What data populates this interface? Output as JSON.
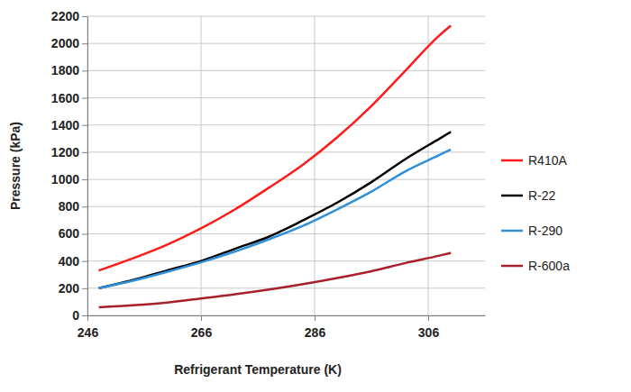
{
  "chart_data": {
    "type": "line",
    "x_label": "Refrigerant Temperature (K)",
    "y_label": "Pressure (kPa)",
    "x": [
      248,
      254,
      260,
      266,
      272,
      278,
      284,
      290,
      296,
      302,
      308,
      310
    ],
    "series": [
      {
        "name": "R410A",
        "color": "#ff1a1a",
        "values": [
          330,
          420,
          520,
          640,
          780,
          940,
          1110,
          1310,
          1540,
          1800,
          2060,
          2130
        ]
      },
      {
        "name": "R-22",
        "color": "#000000",
        "values": [
          200,
          260,
          330,
          400,
          490,
          580,
          700,
          830,
          980,
          1150,
          1300,
          1350
        ]
      },
      {
        "name": "R-290",
        "color": "#2f8fd8",
        "values": [
          200,
          255,
          320,
          390,
          470,
          560,
          660,
          780,
          910,
          1060,
          1180,
          1220
        ]
      },
      {
        "name": "R-600a",
        "color": "#a8202c",
        "values": [
          60,
          75,
          95,
          125,
          155,
          190,
          230,
          275,
          325,
          385,
          440,
          460
        ]
      }
    ],
    "xlim": [
      246,
      316
    ],
    "xticks": [
      246,
      266,
      286,
      306
    ],
    "ylim": [
      0,
      2200
    ],
    "yticks": [
      0,
      200,
      400,
      600,
      800,
      1000,
      1200,
      1400,
      1600,
      1800,
      2000,
      2200
    ],
    "grid": true,
    "legend": "right"
  }
}
